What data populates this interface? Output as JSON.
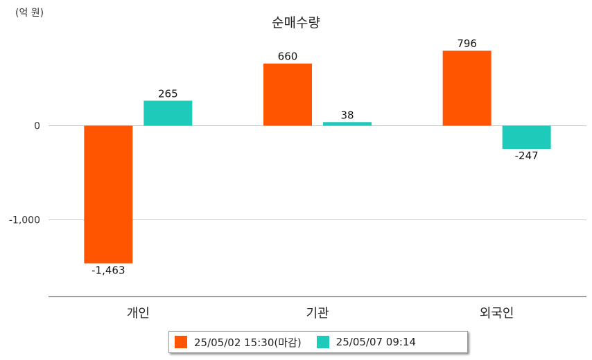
{
  "unit_label": "(억 원)",
  "chart_data": {
    "type": "bar",
    "title": "순매수량",
    "categories": [
      "개인",
      "기관",
      "외국인"
    ],
    "series": [
      {
        "name": "25/05/02 15:30(마감)",
        "color": "#FF5500",
        "values": [
          -1463,
          660,
          796
        ],
        "labels": [
          "-1,463",
          "660",
          "796"
        ]
      },
      {
        "name": "25/05/07 09:14",
        "color": "#1ECBBA",
        "values": [
          265,
          38,
          -247
        ],
        "labels": [
          "265",
          "38",
          "-247"
        ]
      }
    ],
    "yticks": [
      0,
      -1000
    ],
    "ytick_labels": [
      "0",
      "-1,000"
    ],
    "ylim": [
      -1820,
      1000
    ],
    "grid": true,
    "legend_position": "bottom"
  }
}
